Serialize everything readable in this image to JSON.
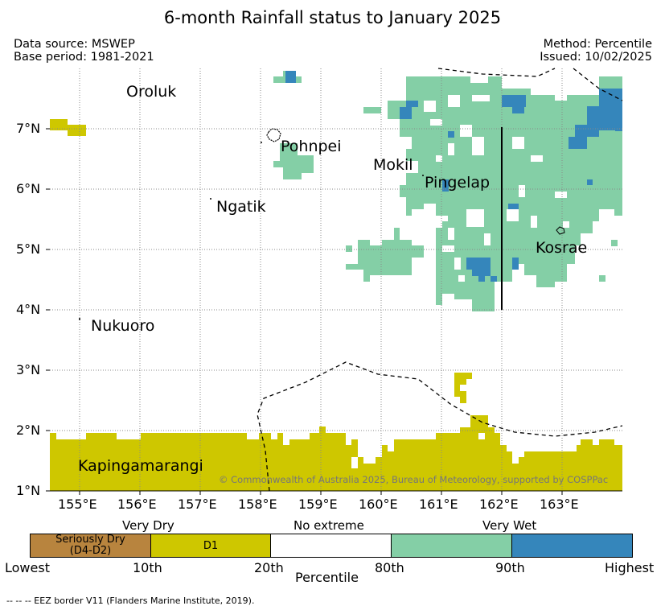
{
  "title": "6-month Rainfall status to January 2025",
  "meta": {
    "data_source": "Data source: MSWEP",
    "base_period": "Base period: 1981-2021",
    "method": "Method: Percentile",
    "issued": "Issued: 10/02/2025"
  },
  "map": {
    "lon_ticks": [
      "155°E",
      "156°E",
      "157°E",
      "158°E",
      "159°E",
      "160°E",
      "161°E",
      "162°E",
      "163°E"
    ],
    "lat_ticks": [
      "1°N",
      "2°N",
      "3°N",
      "4°N",
      "5°N",
      "6°N",
      "7°N"
    ],
    "lon_range": [
      154.5,
      164.0
    ],
    "lat_range": [
      1.0,
      8.0
    ],
    "grid": "dotted",
    "places": [
      "Oroluk",
      "Pohnpei",
      "Mokil",
      "Pingelap",
      "Ngatik",
      "Kosrae",
      "Nukuoro",
      "Kapingamarangi"
    ],
    "copyright": "© Commonwealth of Australia 2025, Bureau of Meteorology, supported by COSPPac",
    "colors": {
      "seriously_dry": "#b8843e",
      "very_dry": "#cec700",
      "no_extreme": "#ffffff",
      "very_wet": "#84cfa6",
      "highest": "#3586bb"
    }
  },
  "legend": {
    "categories": {
      "very_dry": "Very Dry",
      "no_extreme": "No extreme",
      "very_wet": "Very Wet"
    },
    "box_seriously_dry": "Seriously Dry\n(D4-D2)",
    "box_seriously_dry_l1": "Seriously Dry",
    "box_seriously_dry_l2": "(D4-D2)",
    "box_d1": "D1",
    "ticks": [
      "Lowest",
      "10th",
      "20th",
      "80th",
      "90th",
      "Highest"
    ],
    "xlabel": "Percentile"
  },
  "footnote": "--  --  -- EEZ border V11 (Flanders Marine Institute, 2019)."
}
